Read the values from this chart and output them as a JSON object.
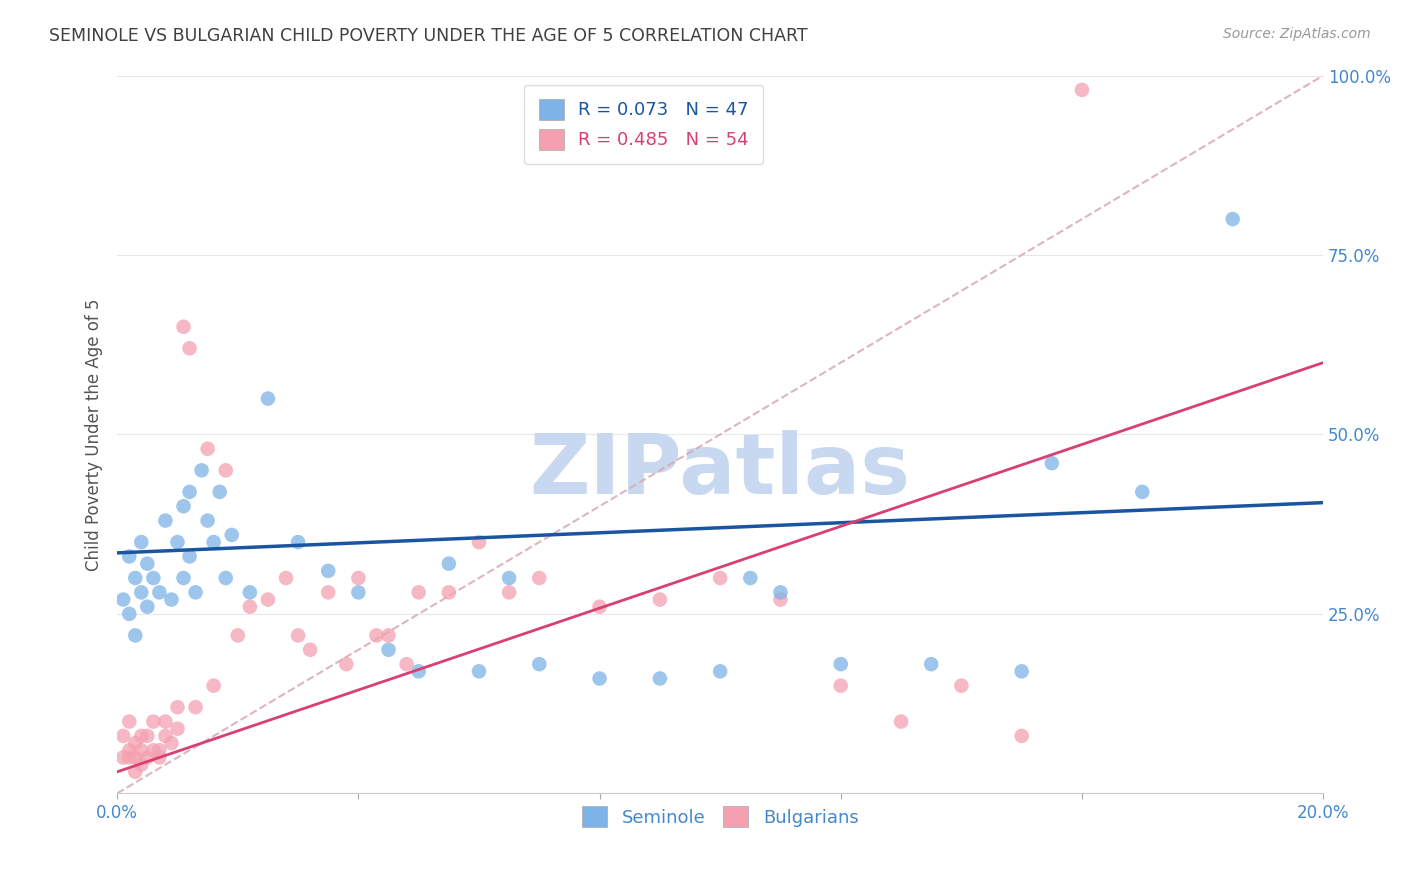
{
  "title": "SEMINOLE VS BULGARIAN CHILD POVERTY UNDER THE AGE OF 5 CORRELATION CHART",
  "source": "Source: ZipAtlas.com",
  "ylabel": "Child Poverty Under the Age of 5",
  "x_min": 0.0,
  "x_max": 0.2,
  "y_min": 0.0,
  "y_max": 1.0,
  "x_ticks": [
    0.0,
    0.04,
    0.08,
    0.12,
    0.16,
    0.2
  ],
  "x_tick_labels": [
    "0.0%",
    "",
    "",
    "",
    "",
    "20.0%"
  ],
  "y_ticks": [
    0.0,
    0.25,
    0.5,
    0.75,
    1.0
  ],
  "y_tick_labels": [
    "",
    "25.0%",
    "50.0%",
    "75.0%",
    "100.0%"
  ],
  "seminole_R": 0.073,
  "seminole_N": 47,
  "bulgarian_R": 0.485,
  "bulgarian_N": 54,
  "seminole_color": "#7EB3E8",
  "bulgarian_color": "#F4A0B0",
  "seminole_line_color": "#1A56A0",
  "bulgarian_line_color": "#D94070",
  "diagonal_color": "#D8A8B8",
  "grid_color": "#E8E8E8",
  "title_color": "#404040",
  "axis_label_color": "#4488CC",
  "watermark_color": "#C8D8F0",
  "seminole_line_x0": 0.0,
  "seminole_line_x1": 0.2,
  "seminole_line_y0": 0.335,
  "seminole_line_y1": 0.405,
  "bulgarian_line_x0": 0.0,
  "bulgarian_line_x1": 0.2,
  "bulgarian_line_y0": 0.03,
  "bulgarian_line_y1": 0.6,
  "seminole_x": [
    0.001,
    0.002,
    0.002,
    0.003,
    0.003,
    0.004,
    0.004,
    0.005,
    0.005,
    0.006,
    0.007,
    0.008,
    0.009,
    0.01,
    0.011,
    0.011,
    0.012,
    0.012,
    0.013,
    0.014,
    0.015,
    0.016,
    0.017,
    0.018,
    0.019,
    0.022,
    0.025,
    0.03,
    0.035,
    0.04,
    0.045,
    0.05,
    0.055,
    0.06,
    0.065,
    0.07,
    0.08,
    0.09,
    0.1,
    0.105,
    0.11,
    0.12,
    0.135,
    0.15,
    0.155,
    0.17,
    0.185
  ],
  "seminole_y": [
    0.27,
    0.33,
    0.25,
    0.3,
    0.22,
    0.28,
    0.35,
    0.26,
    0.32,
    0.3,
    0.28,
    0.38,
    0.27,
    0.35,
    0.4,
    0.3,
    0.33,
    0.42,
    0.28,
    0.45,
    0.38,
    0.35,
    0.42,
    0.3,
    0.36,
    0.28,
    0.55,
    0.35,
    0.31,
    0.28,
    0.2,
    0.17,
    0.32,
    0.17,
    0.3,
    0.18,
    0.16,
    0.16,
    0.17,
    0.3,
    0.28,
    0.18,
    0.18,
    0.17,
    0.46,
    0.42,
    0.8
  ],
  "bulgarian_x": [
    0.001,
    0.001,
    0.002,
    0.002,
    0.002,
    0.003,
    0.003,
    0.003,
    0.004,
    0.004,
    0.004,
    0.005,
    0.005,
    0.006,
    0.006,
    0.007,
    0.007,
    0.008,
    0.008,
    0.009,
    0.01,
    0.01,
    0.011,
    0.012,
    0.013,
    0.015,
    0.016,
    0.018,
    0.02,
    0.022,
    0.025,
    0.028,
    0.03,
    0.032,
    0.035,
    0.038,
    0.04,
    0.043,
    0.045,
    0.048,
    0.05,
    0.055,
    0.06,
    0.065,
    0.07,
    0.08,
    0.09,
    0.1,
    0.11,
    0.12,
    0.13,
    0.14,
    0.15,
    0.16
  ],
  "bulgarian_y": [
    0.05,
    0.08,
    0.06,
    0.1,
    0.05,
    0.07,
    0.05,
    0.03,
    0.06,
    0.08,
    0.04,
    0.05,
    0.08,
    0.06,
    0.1,
    0.06,
    0.05,
    0.08,
    0.1,
    0.07,
    0.09,
    0.12,
    0.65,
    0.62,
    0.12,
    0.48,
    0.15,
    0.45,
    0.22,
    0.26,
    0.27,
    0.3,
    0.22,
    0.2,
    0.28,
    0.18,
    0.3,
    0.22,
    0.22,
    0.18,
    0.28,
    0.28,
    0.35,
    0.28,
    0.3,
    0.26,
    0.27,
    0.3,
    0.27,
    0.15,
    0.1,
    0.15,
    0.08,
    0.98
  ]
}
